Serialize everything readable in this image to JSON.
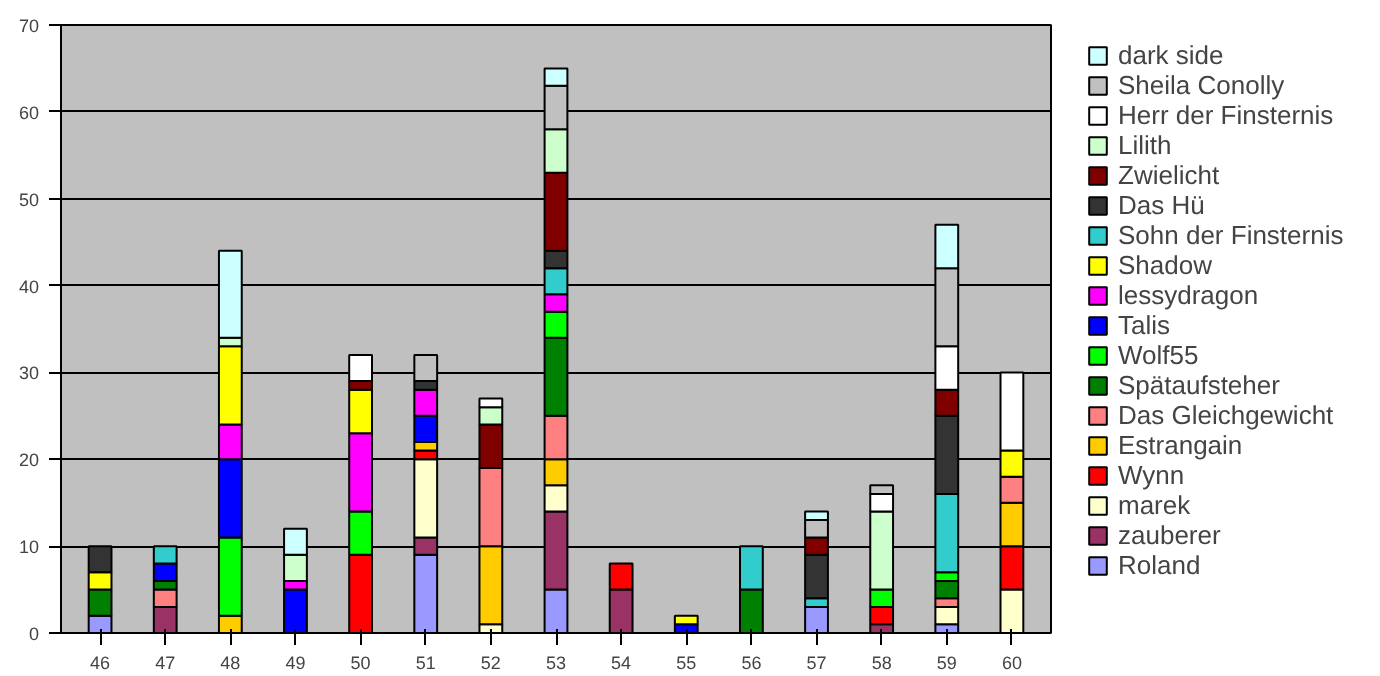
{
  "chart_data": {
    "type": "bar",
    "stacked": true,
    "categories": [
      "46",
      "47",
      "48",
      "49",
      "50",
      "51",
      "52",
      "53",
      "54",
      "55",
      "56",
      "57",
      "58",
      "59",
      "60"
    ],
    "ylim": [
      0,
      70
    ],
    "yticks": [
      0,
      10,
      20,
      30,
      40,
      50,
      60,
      70
    ],
    "grid": "y",
    "legend": "right",
    "series": [
      {
        "name": "Roland",
        "color": "#9999ff",
        "values": [
          2,
          0,
          0,
          0,
          0,
          9,
          0,
          5,
          0,
          0,
          0,
          3,
          0,
          1,
          0
        ]
      },
      {
        "name": "zauberer",
        "color": "#993366",
        "values": [
          0,
          3,
          0,
          0,
          0,
          2,
          0,
          9,
          5,
          0,
          0,
          0,
          1,
          0,
          0
        ]
      },
      {
        "name": "marek",
        "color": "#ffffcc",
        "values": [
          0,
          0,
          0,
          0,
          0,
          9,
          1,
          3,
          0,
          0,
          0,
          0,
          0,
          2,
          5
        ]
      },
      {
        "name": "Wynn",
        "color": "#ff0000",
        "values": [
          0,
          0,
          0,
          0,
          9,
          1,
          0,
          0,
          3,
          0,
          0,
          0,
          2,
          0,
          5
        ]
      },
      {
        "name": "Estrangain",
        "color": "#ffcc00",
        "values": [
          0,
          0,
          2,
          0,
          0,
          1,
          9,
          3,
          0,
          0,
          0,
          0,
          0,
          0,
          5
        ]
      },
      {
        "name": "Das Gleichgewicht",
        "color": "#ff8080",
        "values": [
          0,
          2,
          0,
          0,
          0,
          0,
          9,
          5,
          0,
          0,
          0,
          0,
          0,
          1,
          3
        ]
      },
      {
        "name": "Spätaufsteher",
        "color": "#008000",
        "values": [
          3,
          1,
          0,
          0,
          0,
          0,
          0,
          9,
          0,
          0,
          5,
          0,
          0,
          2,
          0
        ]
      },
      {
        "name": "Wolf55",
        "color": "#00ff00",
        "values": [
          0,
          0,
          9,
          0,
          5,
          0,
          0,
          3,
          0,
          0,
          0,
          0,
          2,
          1,
          0
        ]
      },
      {
        "name": "Talis",
        "color": "#0000ff",
        "values": [
          0,
          2,
          9,
          5,
          0,
          3,
          0,
          0,
          0,
          1,
          0,
          0,
          0,
          0,
          0
        ]
      },
      {
        "name": "lessydragon",
        "color": "#ff00ff",
        "values": [
          0,
          0,
          4,
          1,
          9,
          3,
          0,
          2,
          0,
          0,
          0,
          0,
          0,
          0,
          0
        ]
      },
      {
        "name": "Shadow",
        "color": "#ffff00",
        "values": [
          2,
          0,
          9,
          0,
          5,
          0,
          0,
          0,
          0,
          1,
          0,
          0,
          0,
          0,
          3
        ]
      },
      {
        "name": "Sohn der Finsternis",
        "color": "#33cccc",
        "values": [
          0,
          2,
          0,
          0,
          0,
          0,
          0,
          3,
          0,
          0,
          5,
          1,
          0,
          9,
          0
        ]
      },
      {
        "name": "Das Hü",
        "color": "#333333",
        "values": [
          3,
          0,
          0,
          0,
          0,
          1,
          0,
          2,
          0,
          0,
          0,
          5,
          0,
          9,
          0
        ]
      },
      {
        "name": "Zwielicht",
        "color": "#800000",
        "values": [
          0,
          0,
          0,
          0,
          1,
          0,
          5,
          9,
          0,
          0,
          0,
          2,
          0,
          3,
          0
        ]
      },
      {
        "name": "Lilith",
        "color": "#ccffcc",
        "values": [
          0,
          0,
          1,
          3,
          0,
          0,
          2,
          5,
          0,
          0,
          0,
          0,
          9,
          0,
          0
        ]
      },
      {
        "name": "Herr der Finsternis",
        "color": "#ffffff",
        "values": [
          0,
          0,
          0,
          0,
          3,
          0,
          1,
          0,
          0,
          0,
          0,
          0,
          2,
          5,
          9
        ]
      },
      {
        "name": "Sheila Conolly",
        "color": "#c0c0c0",
        "values": [
          0,
          0,
          0,
          0,
          0,
          3,
          0,
          5,
          0,
          0,
          0,
          2,
          1,
          9,
          0
        ]
      },
      {
        "name": "dark side",
        "color": "#ccffff",
        "values": [
          0,
          0,
          10,
          3,
          0,
          0,
          0,
          2,
          0,
          0,
          0,
          1,
          0,
          5,
          0
        ]
      }
    ]
  }
}
